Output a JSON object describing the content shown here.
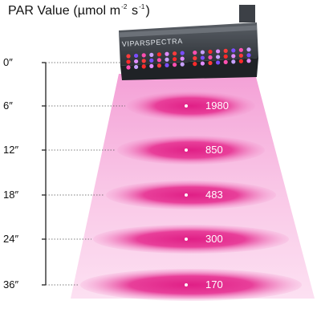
{
  "title": {
    "prefix": "PAR Value (µmol m",
    "exp1": "-2",
    "middle": " s",
    "exp2": "-1",
    "suffix": ")"
  },
  "brand_text": "VIPARSPECTRA",
  "light_color": "#e0389a",
  "light_glow_color": "#f6a9db",
  "readings": [
    {
      "distance": "0″",
      "par": ""
    },
    {
      "distance": "6″",
      "par": "1980"
    },
    {
      "distance": "12″",
      "par": "850"
    },
    {
      "distance": "18″",
      "par": "483"
    },
    {
      "distance": "24″",
      "par": "300"
    },
    {
      "distance": "36″",
      "par": "170"
    }
  ]
}
